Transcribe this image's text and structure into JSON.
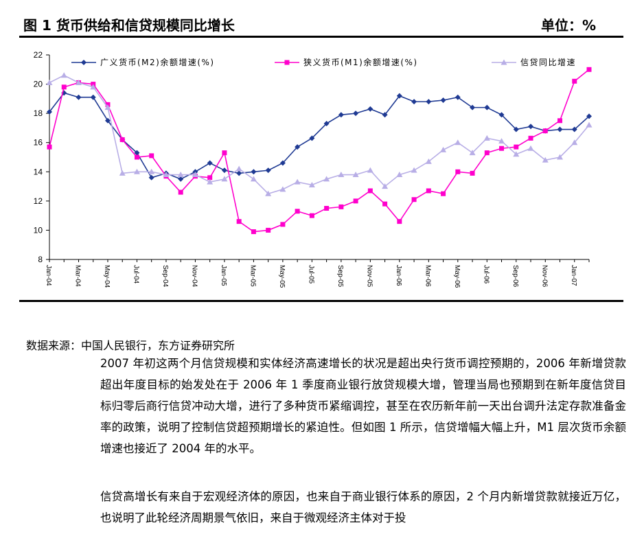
{
  "header": {
    "title": "图 1  货币供给和信贷规模同比增长",
    "unit": "单位：%"
  },
  "chart_data": {
    "type": "line",
    "title": "",
    "xlabel": "",
    "ylabel": "",
    "ylim": [
      8,
      22
    ],
    "yticks": [
      8,
      10,
      12,
      14,
      16,
      18,
      20,
      22
    ],
    "grid": false,
    "legend_position": "top",
    "x_tick_labels": [
      "Jan-04",
      "Mar-04",
      "May-04",
      "Jul-04",
      "Sep-04",
      "Nov-04",
      "Jan-05",
      "Mar-05",
      "May-05",
      "Jul-05",
      "Sep-05",
      "Nov-05",
      "Jan-06",
      "Mar-06",
      "May-06",
      "Jul-06",
      "Sep-06",
      "Nov-06",
      "Jan-07"
    ],
    "x": [
      "2004-01",
      "2004-02",
      "2004-03",
      "2004-04",
      "2004-05",
      "2004-06",
      "2004-07",
      "2004-08",
      "2004-09",
      "2004-10",
      "2004-11",
      "2004-12",
      "2005-01",
      "2005-02",
      "2005-03",
      "2005-04",
      "2005-05",
      "2005-06",
      "2005-07",
      "2005-08",
      "2005-09",
      "2005-10",
      "2005-11",
      "2005-12",
      "2006-01",
      "2006-02",
      "2006-03",
      "2006-04",
      "2006-05",
      "2006-06",
      "2006-07",
      "2006-08",
      "2006-09",
      "2006-10",
      "2006-11",
      "2006-12",
      "2007-01",
      "2007-02"
    ],
    "series": [
      {
        "name": "广义货币(M2)余额增速(%)",
        "color": "#1f3a93",
        "marker": "diamond",
        "values": [
          18.1,
          19.4,
          19.1,
          19.1,
          17.5,
          16.2,
          15.3,
          13.6,
          13.9,
          13.5,
          14.0,
          14.6,
          14.1,
          13.9,
          14.0,
          14.1,
          14.6,
          15.7,
          16.3,
          17.3,
          17.9,
          18.0,
          18.3,
          17.9,
          19.2,
          18.8,
          18.8,
          18.9,
          19.1,
          18.4,
          18.4,
          17.9,
          16.9,
          17.1,
          16.8,
          16.9,
          16.9,
          17.8
        ]
      },
      {
        "name": "狭义货币(M1)余额增速(%)",
        "color": "#ff00cc",
        "marker": "square",
        "values": [
          15.7,
          19.8,
          20.1,
          20.0,
          18.6,
          16.2,
          15.0,
          15.1,
          13.7,
          12.6,
          13.7,
          13.6,
          15.3,
          10.6,
          9.9,
          10.0,
          10.4,
          11.3,
          11.0,
          11.5,
          11.6,
          12.0,
          12.7,
          11.8,
          10.6,
          12.1,
          12.7,
          12.5,
          14.0,
          13.9,
          15.3,
          15.6,
          15.7,
          16.3,
          16.8,
          17.5,
          20.2,
          21.0
        ]
      },
      {
        "name": "信贷同比增速",
        "color": "#b8aee6",
        "marker": "triangle",
        "values": [
          20.1,
          20.6,
          20.1,
          19.8,
          18.4,
          13.9,
          14.0,
          14.0,
          13.8,
          13.8,
          13.8,
          13.3,
          13.5,
          14.2,
          13.5,
          12.5,
          12.8,
          13.3,
          13.1,
          13.5,
          13.8,
          13.8,
          14.1,
          13.0,
          13.8,
          14.1,
          14.7,
          15.5,
          16.0,
          15.3,
          16.3,
          16.1,
          15.2,
          15.6,
          14.8,
          15.0,
          16.0,
          17.2
        ]
      }
    ]
  },
  "source": {
    "text": "数据来源：中国人民银行，东方证券研究所"
  },
  "body": {
    "paragraph1": "2007 年初这两个月信贷规模和实体经济高速增长的状况是超出央行货币调控预期的，2006 年新增贷款超出年度目标的始发处在于 2006 年 1 季度商业银行放贷规模大增，管理当局也预期到在新年度信贷目标归零后商行信贷冲动大增，进行了多种货币紧缩调控，甚至在农历新年前一天出台调升法定存款准备金率的政策，说明了控制信贷超预期增长的紧迫性。但如图 1 所示，信贷增幅大幅上升，M1 层次货币余额增速也接近了 2004 年的水平。",
    "paragraph2": "信贷高增长有来自于宏观经济体的原因，也来自于商业银行体系的原因，2 个月内新增贷款就接近万亿，也说明了此轮经济周期景气依旧，来自于微观经济主体对于投"
  }
}
